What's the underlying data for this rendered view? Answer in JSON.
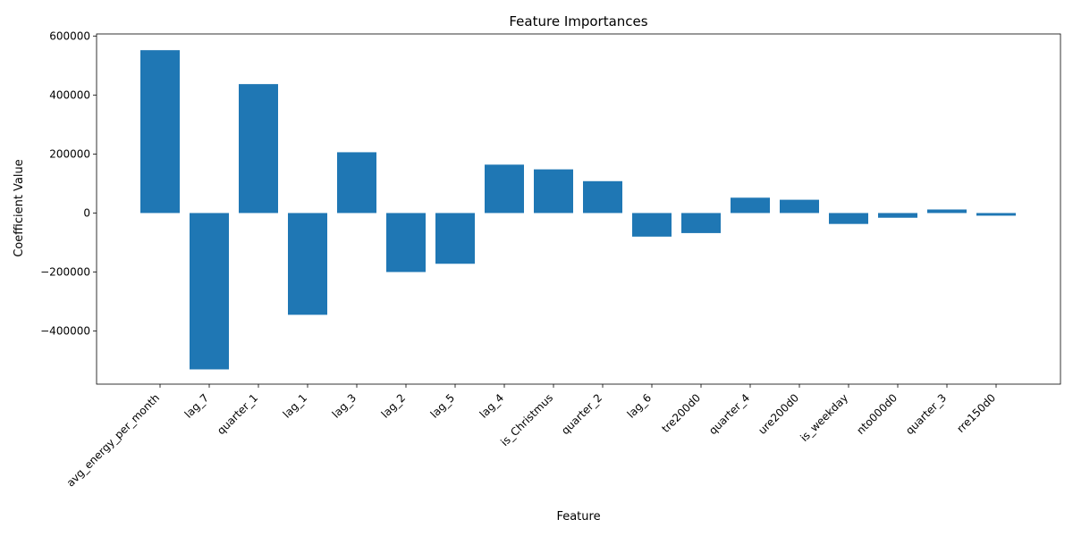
{
  "chart_data": {
    "type": "bar",
    "title": "Feature Importances",
    "xlabel": "Feature",
    "ylabel": "Coefficient Value",
    "categories": [
      "avg_energy_per_month",
      "lag_7",
      "quarter_1",
      "lag_1",
      "lag_3",
      "lag_2",
      "lag_5",
      "lag_4",
      "is_Christmus",
      "quarter_2",
      "lag_6",
      "tre200d0",
      "quarter_4",
      "ure200d0",
      "is_weekday",
      "nto000d0",
      "quarter_3",
      "rre150d0"
    ],
    "values": [
      552000,
      -530000,
      437000,
      -345000,
      206000,
      -200000,
      -172000,
      164000,
      148000,
      108000,
      -80000,
      -68000,
      52000,
      45000,
      -37000,
      -16000,
      12000,
      -9000
    ],
    "ylim": [
      -580000,
      607000
    ],
    "yticks": [
      -400000,
      -200000,
      0,
      200000,
      400000,
      600000
    ],
    "ytick_labels": [
      "−400000",
      "−200000",
      "0",
      "200000",
      "400000",
      "600000"
    ],
    "bar_color": "#1f77b4",
    "grid": false
  }
}
